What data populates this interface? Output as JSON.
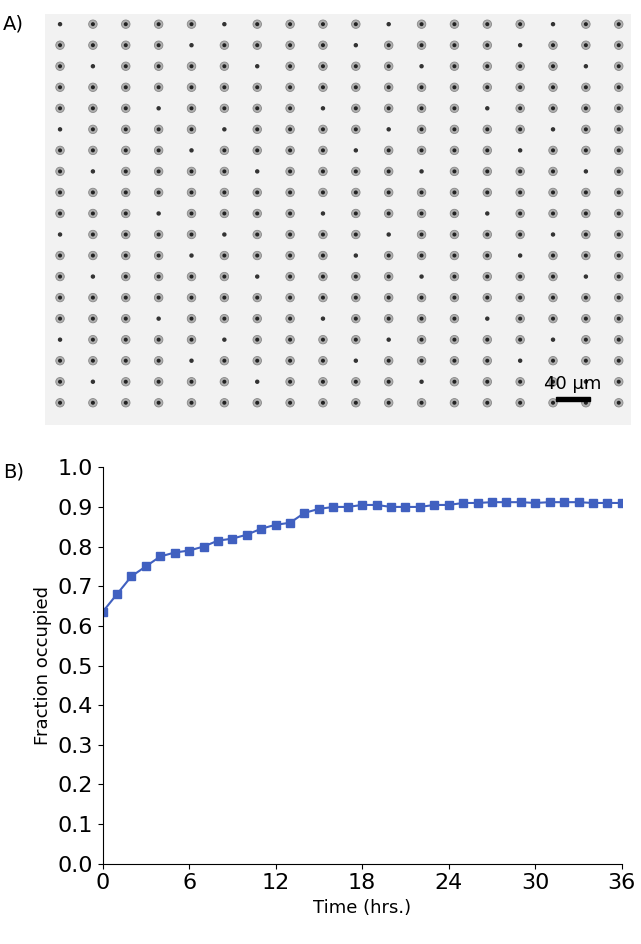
{
  "panel_labels": [
    "A)",
    "B)"
  ],
  "image": {
    "scale_bar": "40 µm"
  },
  "chart_data": {
    "type": "line",
    "x_label": "Time (hrs.)",
    "y_label": "Fraction occupied",
    "x": [
      0,
      1,
      2,
      3,
      4,
      5,
      6,
      7,
      8,
      9,
      10,
      11,
      12,
      13,
      14,
      15,
      16,
      17,
      18,
      19,
      20,
      21,
      22,
      23,
      24,
      25,
      26,
      27,
      28,
      29,
      30,
      31,
      32,
      33,
      34,
      35,
      36
    ],
    "series": [
      {
        "name": "Fraction occupied",
        "color": "#4060c0",
        "marker": "s",
        "line_style": "solid",
        "values": [
          0.635,
          0.68,
          0.725,
          0.75,
          0.775,
          0.785,
          0.79,
          0.8,
          0.815,
          0.82,
          0.83,
          0.845,
          0.855,
          0.86,
          0.885,
          0.895,
          0.9,
          0.9,
          0.905,
          0.905,
          0.9,
          0.9,
          0.9,
          0.905,
          0.905,
          0.91,
          0.91,
          0.912,
          0.912,
          0.912,
          0.91,
          0.912,
          0.912,
          0.912,
          0.91,
          0.91,
          0.91
        ]
      }
    ],
    "xlim": [
      0,
      36
    ],
    "xticks": [
      0,
      6,
      12,
      18,
      24,
      30,
      36
    ],
    "ylim": [
      0,
      1
    ],
    "yticks": [
      {
        "value": 0,
        "label": "0.0"
      },
      {
        "value": 0.1,
        "label": "0.1"
      },
      {
        "value": 0.2,
        "label": "0.2"
      },
      {
        "value": 0.3,
        "label": "0.3"
      },
      {
        "value": 0.4,
        "label": "0.4"
      },
      {
        "value": 0.5,
        "label": "0.5"
      },
      {
        "value": 0.6,
        "label": "0.6"
      },
      {
        "value": 0.7,
        "label": "0.7"
      },
      {
        "value": 0.8,
        "label": "0.8"
      },
      {
        "value": 0.9,
        "label": "0.9"
      },
      {
        "value": 1,
        "label": "1.0"
      }
    ],
    "grid": false
  }
}
